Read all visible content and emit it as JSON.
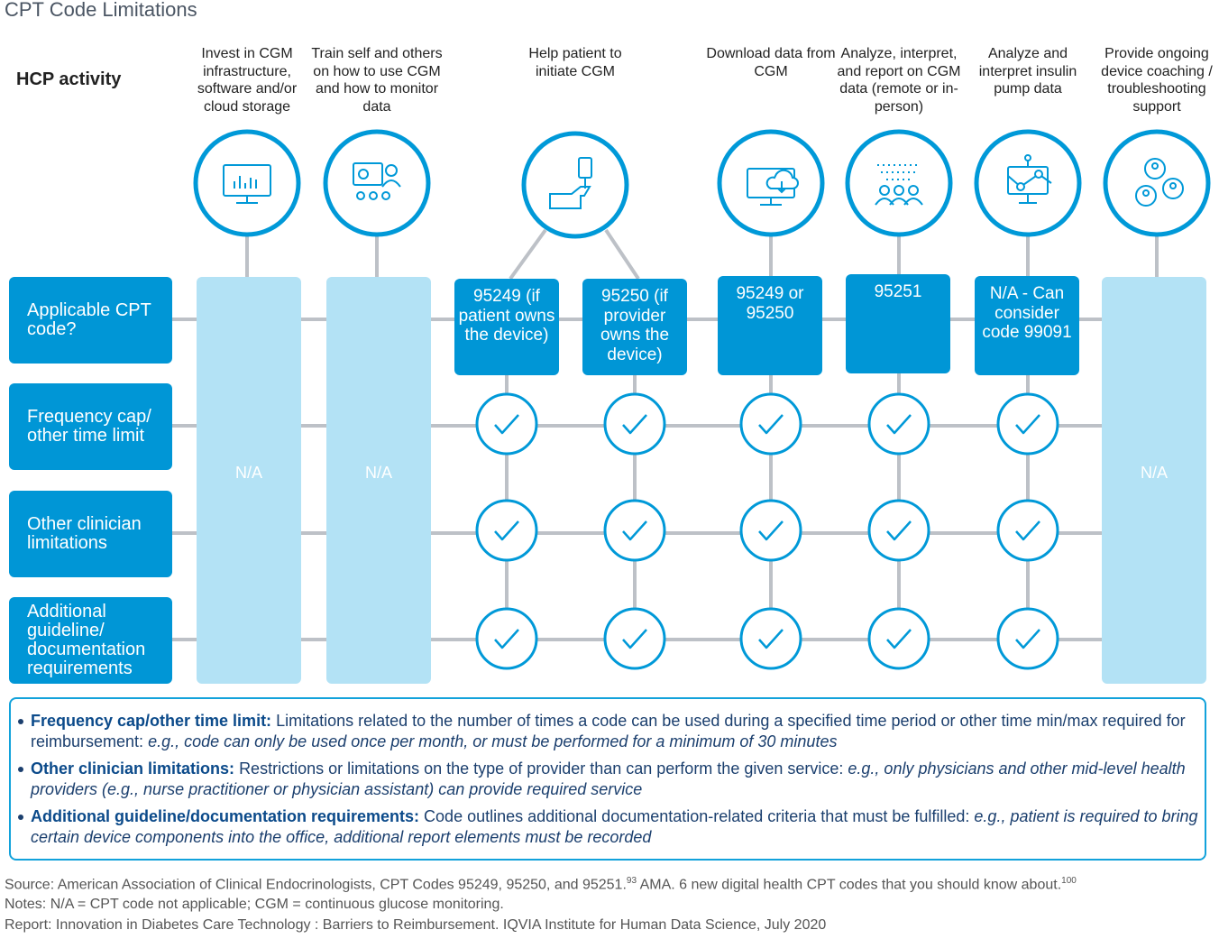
{
  "title": "CPT Code Limitations",
  "row_header": "HCP activity",
  "activities": [
    "Invest in CGM infrastructure, software and/or cloud storage",
    "Train self and others on how to use CGM and how to monitor data",
    "Help patient to initiate CGM",
    "Download data from CGM",
    "Analyze, interpret, and report on CGM data (remote or in-person)",
    "Analyze and interpret insulin pump data",
    "Provide ongoing device coaching / troubleshooting support"
  ],
  "rows": [
    "Applicable CPT code?",
    "Frequency cap/ other time limit",
    "Other clinician limitations",
    "Additional guideline/ documentation requirements"
  ],
  "not_applicable": [
    "N/A",
    "N/A",
    "N/A"
  ],
  "cpt_codes": [
    "95249 (if patient owns the device)",
    "95250 (if provider owns the device)",
    "95249 or 95250",
    "95251",
    "N/A - Can consider code 99091"
  ],
  "definitions": [
    {
      "term": "Frequency cap/other time limit:",
      "description": "Limitations related to the number of times a code can be used during a specified time period or other time min/max required for reimbursement:",
      "example": "e.g., code can only be used once per month, or must be performed for a minimum of 30 minutes"
    },
    {
      "term": "Other clinician limitations:",
      "description": "Restrictions or limitations on the type of provider than can perform the given service:",
      "example": "e.g., only physicians and other mid-level health providers (e.g., nurse practitioner or physician assistant) can provide required service"
    },
    {
      "term": "Additional guideline/documentation requirements:",
      "description": "Code outlines additional documentation-related criteria that must be fulfilled:",
      "example": "e.g., patient is required to bring certain device components into the office, additional report elements must be recorded"
    }
  ],
  "footer": {
    "source": "Source: American Association of Clinical Endocrinologists, CPT Codes 95249, 95250, and 95251.",
    "source_ref1": "93",
    "source_cont": "AMA. 6 new digital health CPT codes that you should know about.",
    "source_ref2": "100",
    "notes": "Notes: N/A = CPT code not applicable; CGM = continuous glucose monitoring.",
    "report": "Report: Innovation in Diabetes Care Technology : Barriers to Reimbursement. IQVIA Institute for Human Data Science, July 2020"
  }
}
